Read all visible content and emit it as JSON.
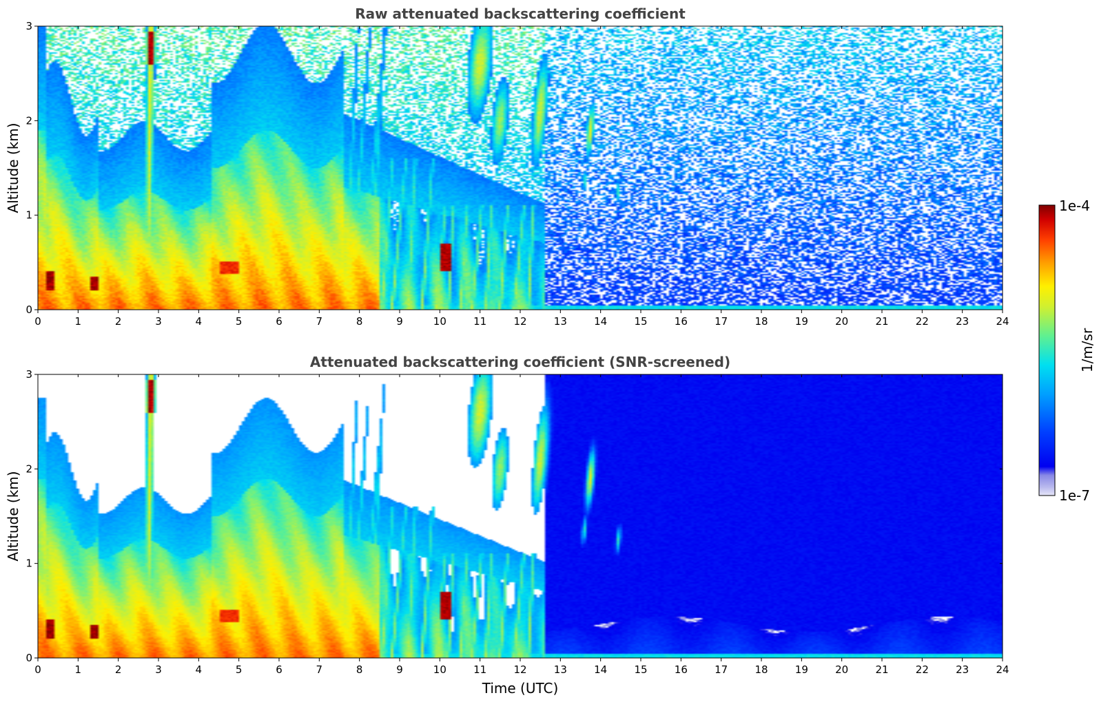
{
  "chart_data": [
    {
      "type": "heatmap",
      "title": "Raw attenuated backscattering coefficient",
      "xlabel": "",
      "ylabel": "Altitude (km)",
      "xlim": [
        0,
        24
      ],
      "ylim": [
        0,
        3
      ],
      "xticks": [
        "0",
        "1",
        "2",
        "3",
        "4",
        "5",
        "6",
        "7",
        "8",
        "9",
        "10",
        "11",
        "12",
        "13",
        "14",
        "15",
        "16",
        "17",
        "18",
        "19",
        "20",
        "21",
        "22",
        "23",
        "24"
      ],
      "yticks": [
        "0",
        "1",
        "2",
        "3"
      ],
      "screened": false,
      "features": [
        {
          "desc": "boundary layer aerosol",
          "time_range": [
            0,
            12.5
          ],
          "altitude_range": [
            0,
            1.5
          ],
          "level": "high"
        },
        {
          "desc": "plume",
          "time_range": [
            2.5,
            3.0
          ],
          "altitude_range": [
            0,
            2.9
          ],
          "level": "very high near 2.8 km"
        },
        {
          "desc": "precipitation streaks",
          "time_range": [
            7.5,
            12.5
          ],
          "altitude_range": [
            0,
            3
          ],
          "level": "medium-high"
        },
        {
          "desc": "elevated layers",
          "time_range": [
            11,
            14
          ],
          "altitude_range": [
            1.5,
            3
          ],
          "level": "medium"
        },
        {
          "desc": "shallow low layer",
          "time_range": [
            12.5,
            24
          ],
          "altitude_range": [
            0,
            0.4
          ],
          "level": "low"
        }
      ]
    },
    {
      "type": "heatmap",
      "title": "Attenuated backscattering coefficient (SNR-screened)",
      "xlabel": "Time (UTC)",
      "ylabel": "Altitude (km)",
      "xlim": [
        0,
        24
      ],
      "ylim": [
        0,
        3
      ],
      "xticks": [
        "0",
        "1",
        "2",
        "3",
        "4",
        "5",
        "6",
        "7",
        "8",
        "9",
        "10",
        "11",
        "12",
        "13",
        "14",
        "15",
        "16",
        "17",
        "18",
        "19",
        "20",
        "21",
        "22",
        "23",
        "24"
      ],
      "yticks": [
        "0",
        "1",
        "2",
        "3"
      ],
      "screened": true
    }
  ],
  "colorbar": {
    "max_label": "1e-4",
    "min_label": "1e-7",
    "unit_label": "1/m/sr",
    "colormap": [
      "#e6e6f8",
      "#b8b8ee",
      "#8888e6",
      "#0000f0",
      "#0030ff",
      "#0080ff",
      "#00c0ff",
      "#00e8e0",
      "#40f0a0",
      "#90f060",
      "#d8f030",
      "#fff000",
      "#ffc000",
      "#ff8000",
      "#ff4000",
      "#e00000",
      "#800000"
    ]
  }
}
